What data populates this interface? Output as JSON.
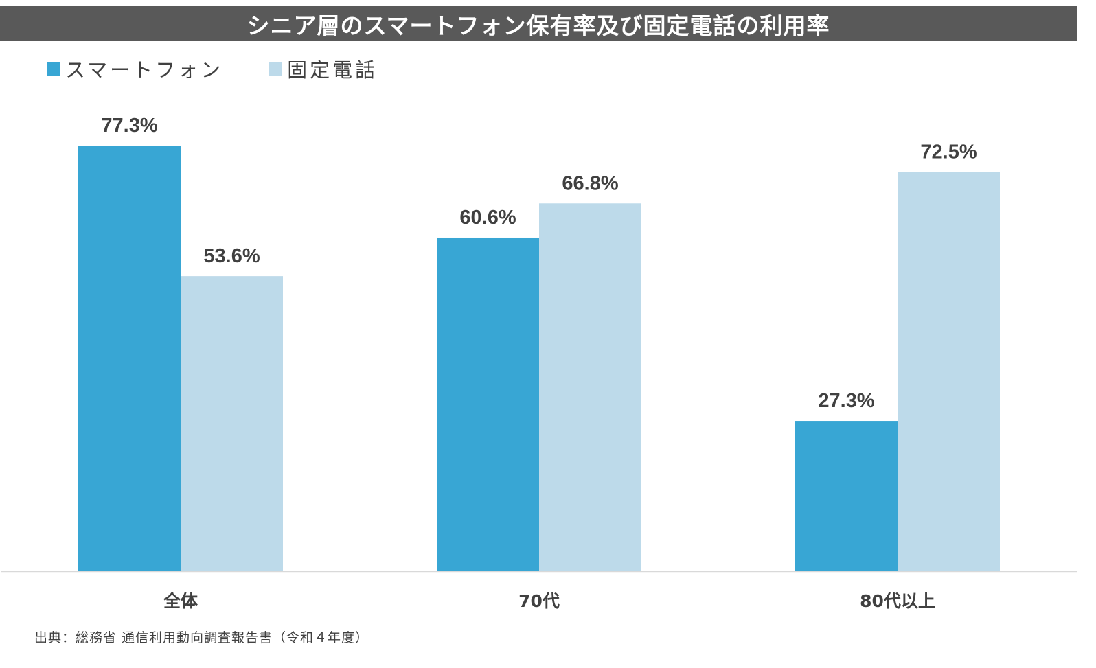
{
  "chart_data": {
    "type": "bar",
    "title": "シニア層のスマートフォン保有率及び固定電話の利用率",
    "categories": [
      "全体",
      "70代",
      "80代以上"
    ],
    "series": [
      {
        "name": "スマートフォン",
        "color": "#38A6D4",
        "values": [
          77.3,
          60.6,
          27.3
        ],
        "labels": [
          "77.3%",
          "60.6%",
          "27.3%"
        ]
      },
      {
        "name": "固定電話",
        "color": "#BDDAEA",
        "values": [
          53.6,
          66.8,
          72.5
        ],
        "labels": [
          "53.6%",
          "66.8%",
          "72.5%"
        ]
      }
    ],
    "ylim": [
      0,
      100
    ],
    "xlabel": "",
    "ylabel": "",
    "legend": "top-left",
    "grid": false
  },
  "source": "出典：総務省 通信利用動向調査報告書（令和４年度）",
  "colors": {
    "title_bg": "#595959",
    "text": "#404040",
    "axis": "#D9D9D9"
  }
}
